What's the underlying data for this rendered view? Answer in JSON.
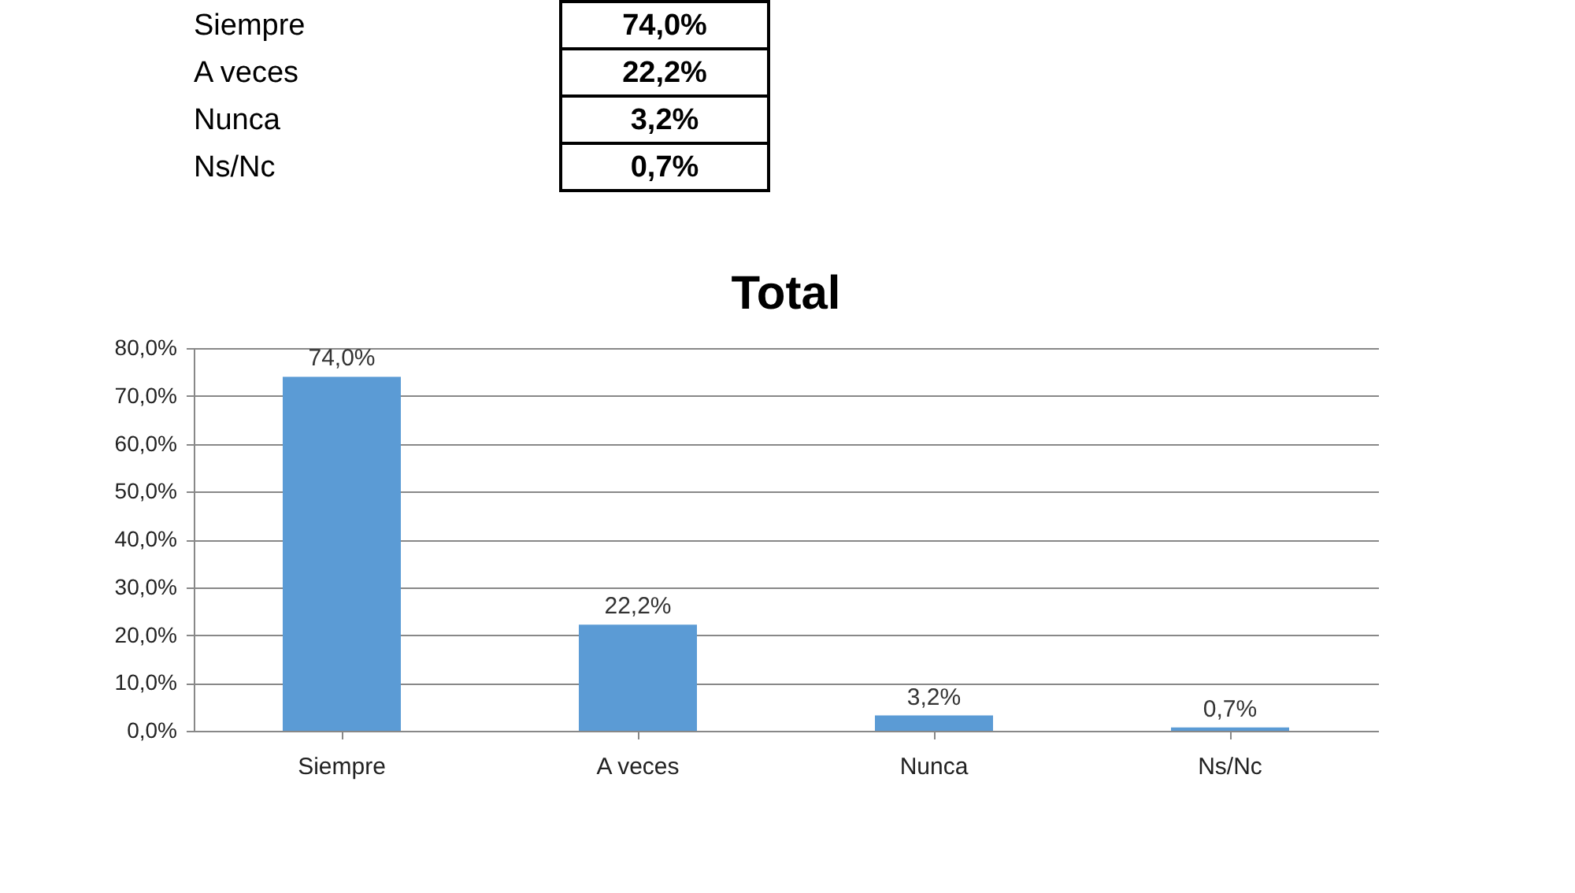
{
  "chart_data": {
    "type": "bar",
    "title": "Total",
    "categories": [
      "Siempre",
      "A veces",
      "Nunca",
      "Ns/Nc"
    ],
    "values": [
      74.0,
      22.2,
      3.2,
      0.7
    ],
    "value_labels": [
      "74,0%",
      "22,2%",
      "3,2%",
      "0,7%"
    ],
    "color": "#5b9bd5",
    "ylim": [
      0,
      80
    ],
    "yticks": [
      {
        "value": 0,
        "label": "0,0%"
      },
      {
        "value": 10,
        "label": "10,0%"
      },
      {
        "value": 20,
        "label": "20,0%"
      },
      {
        "value": 30,
        "label": "30,0%"
      },
      {
        "value": 40,
        "label": "40,0%"
      },
      {
        "value": 50,
        "label": "50,0%"
      },
      {
        "value": 60,
        "label": "60,0%"
      },
      {
        "value": 70,
        "label": "70,0%"
      },
      {
        "value": 80,
        "label": "80,0%"
      }
    ],
    "grid": "y"
  }
}
